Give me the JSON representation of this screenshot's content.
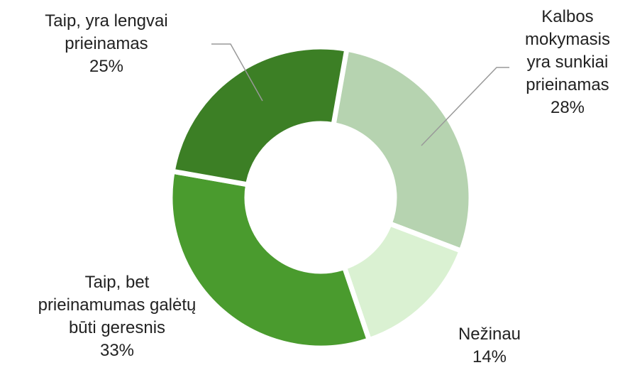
{
  "chart_data": {
    "type": "pie",
    "categories": [
      "Kalbos mokymasis yra sunkiai prieinamas",
      "Nežinau",
      "Taip, bet prieinamumas galėtų būti geresnis",
      "Taip, yra lengvai prieinamas"
    ],
    "values": [
      28,
      14,
      33,
      25
    ],
    "value_labels": [
      "28%",
      "14%",
      "33%",
      "25%"
    ],
    "colors": [
      "#b6d3b0",
      "#daf1d2",
      "#4a9b2e",
      "#3c7f25"
    ]
  }
}
